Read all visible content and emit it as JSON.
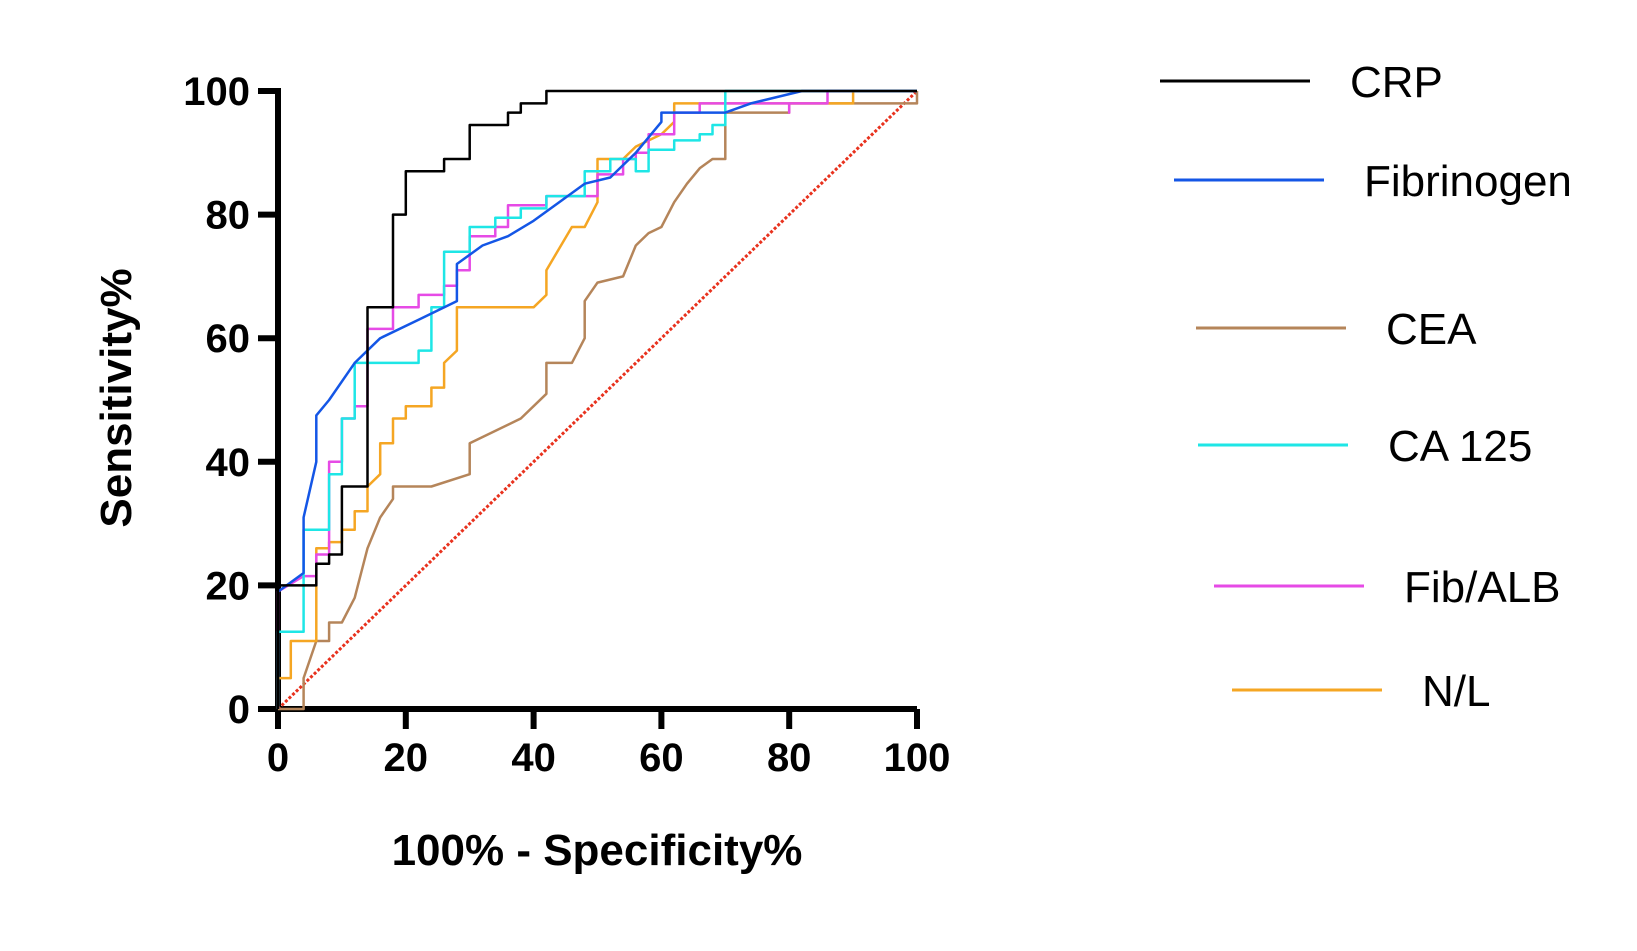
{
  "chart_data": {
    "type": "line",
    "xlabel": "100% - Specificity%",
    "ylabel": "Sensitivity%",
    "xlim": [
      0,
      100
    ],
    "ylim": [
      0,
      100
    ],
    "x_ticks": [
      "0",
      "20",
      "40",
      "60",
      "80",
      "100"
    ],
    "y_ticks": [
      "0",
      "20",
      "40",
      "60",
      "80",
      "100"
    ],
    "grid": false,
    "legend_position": "right",
    "reference_line": {
      "x": [
        0,
        100
      ],
      "y": [
        0,
        100
      ],
      "color": "#e8321e",
      "style": "dotted"
    },
    "series": [
      {
        "name": "CRP",
        "color": "#000000",
        "points": [
          [
            0,
            0
          ],
          [
            0,
            20
          ],
          [
            6,
            20
          ],
          [
            6,
            23.5
          ],
          [
            8,
            23.5
          ],
          [
            8,
            25
          ],
          [
            10,
            25
          ],
          [
            10,
            36
          ],
          [
            12,
            36
          ],
          [
            12,
            36
          ],
          [
            14,
            36
          ],
          [
            14,
            65
          ],
          [
            18,
            65
          ],
          [
            18,
            80
          ],
          [
            20,
            80
          ],
          [
            20,
            87
          ],
          [
            26,
            87
          ],
          [
            26,
            89
          ],
          [
            30,
            89
          ],
          [
            30,
            94.5
          ],
          [
            36,
            94.5
          ],
          [
            36,
            96.5
          ],
          [
            38,
            96.5
          ],
          [
            38,
            98
          ],
          [
            42,
            98
          ],
          [
            42,
            100
          ],
          [
            100,
            100
          ]
        ]
      },
      {
        "name": "Fibrinogen",
        "color": "#1456e6",
        "points": [
          [
            0,
            19
          ],
          [
            4,
            22
          ],
          [
            4,
            31
          ],
          [
            6,
            40
          ],
          [
            6,
            47.5
          ],
          [
            8,
            50
          ],
          [
            12,
            56
          ],
          [
            16,
            60
          ],
          [
            22,
            63
          ],
          [
            28,
            66
          ],
          [
            28,
            72
          ],
          [
            32,
            75
          ],
          [
            36,
            76.5
          ],
          [
            40,
            79
          ],
          [
            44,
            82
          ],
          [
            48,
            85
          ],
          [
            52,
            86
          ],
          [
            56,
            90
          ],
          [
            60,
            95
          ],
          [
            60,
            96.5
          ],
          [
            70,
            96.5
          ],
          [
            74,
            98
          ],
          [
            82,
            100
          ],
          [
            100,
            100
          ]
        ]
      },
      {
        "name": "CEA",
        "color": "#b5855a",
        "points": [
          [
            0,
            0
          ],
          [
            4,
            0
          ],
          [
            4,
            5
          ],
          [
            6,
            11
          ],
          [
            8,
            11
          ],
          [
            8,
            14
          ],
          [
            10,
            14
          ],
          [
            12,
            18
          ],
          [
            13,
            22
          ],
          [
            14,
            26
          ],
          [
            16,
            31
          ],
          [
            18,
            34
          ],
          [
            18,
            36
          ],
          [
            24,
            36
          ],
          [
            30,
            38
          ],
          [
            30,
            43
          ],
          [
            34,
            45
          ],
          [
            38,
            47
          ],
          [
            42,
            51
          ],
          [
            42,
            56
          ],
          [
            46,
            56
          ],
          [
            48,
            60
          ],
          [
            48,
            66
          ],
          [
            50,
            69
          ],
          [
            54,
            70
          ],
          [
            56,
            75
          ],
          [
            58,
            77
          ],
          [
            60,
            78
          ],
          [
            62,
            82
          ],
          [
            64,
            85
          ],
          [
            66,
            87.5
          ],
          [
            68,
            89
          ],
          [
            70,
            89
          ],
          [
            70,
            96.5
          ],
          [
            80,
            96.5
          ],
          [
            80,
            98
          ],
          [
            100,
            98
          ],
          [
            100,
            100
          ]
        ]
      },
      {
        "name": "CA 125",
        "color": "#1ee6e6",
        "points": [
          [
            0,
            0
          ],
          [
            0,
            12.5
          ],
          [
            4,
            12.5
          ],
          [
            4,
            29
          ],
          [
            8,
            29
          ],
          [
            8,
            38
          ],
          [
            10,
            38
          ],
          [
            10,
            47
          ],
          [
            12,
            47
          ],
          [
            12,
            56
          ],
          [
            22,
            56
          ],
          [
            22,
            58
          ],
          [
            24,
            58
          ],
          [
            24,
            65
          ],
          [
            26,
            65
          ],
          [
            26,
            74
          ],
          [
            30,
            74
          ],
          [
            30,
            78
          ],
          [
            34,
            78
          ],
          [
            34,
            79.5
          ],
          [
            38,
            79.5
          ],
          [
            38,
            81
          ],
          [
            42,
            81
          ],
          [
            42,
            83
          ],
          [
            44,
            83
          ],
          [
            48,
            83
          ],
          [
            48,
            87
          ],
          [
            52,
            87
          ],
          [
            52,
            89
          ],
          [
            56,
            89
          ],
          [
            56,
            87
          ],
          [
            58,
            87
          ],
          [
            58,
            90.5
          ],
          [
            62,
            90.5
          ],
          [
            62,
            92
          ],
          [
            66,
            92
          ],
          [
            66,
            93
          ],
          [
            68,
            93
          ],
          [
            68,
            94.5
          ],
          [
            70,
            94.5
          ],
          [
            70,
            100
          ],
          [
            100,
            100
          ]
        ]
      },
      {
        "name": "Fib/ALB",
        "color": "#e64ae6",
        "points": [
          [
            0,
            0
          ],
          [
            0,
            19
          ],
          [
            4,
            21.5
          ],
          [
            6,
            21.5
          ],
          [
            6,
            25
          ],
          [
            8,
            25
          ],
          [
            8,
            40
          ],
          [
            10,
            40
          ],
          [
            10,
            47
          ],
          [
            12,
            47
          ],
          [
            12,
            49
          ],
          [
            14,
            49
          ],
          [
            14,
            61.5
          ],
          [
            18,
            61.5
          ],
          [
            18,
            65
          ],
          [
            22,
            65
          ],
          [
            22,
            67
          ],
          [
            26,
            67
          ],
          [
            26,
            68.5
          ],
          [
            28,
            68.5
          ],
          [
            28,
            71
          ],
          [
            30,
            71
          ],
          [
            30,
            76.5
          ],
          [
            34,
            76.5
          ],
          [
            34,
            78
          ],
          [
            36,
            78
          ],
          [
            36,
            81.5
          ],
          [
            42,
            81.5
          ],
          [
            42,
            83
          ],
          [
            50,
            83
          ],
          [
            50,
            86.5
          ],
          [
            52,
            86.5
          ],
          [
            54,
            86.5
          ],
          [
            54,
            89
          ],
          [
            56,
            89
          ],
          [
            56,
            90
          ],
          [
            58,
            90
          ],
          [
            58,
            93
          ],
          [
            62,
            93
          ],
          [
            62,
            96.5
          ],
          [
            66,
            96.5
          ],
          [
            66,
            98
          ],
          [
            80,
            98
          ],
          [
            80,
            96.5
          ],
          [
            80,
            98
          ],
          [
            86,
            98
          ],
          [
            86,
            100
          ],
          [
            100,
            100
          ]
        ]
      },
      {
        "name": "N/L",
        "color": "#f5a623",
        "points": [
          [
            0,
            0
          ],
          [
            0,
            5
          ],
          [
            2,
            5
          ],
          [
            2,
            11
          ],
          [
            4,
            11
          ],
          [
            6,
            11
          ],
          [
            6,
            26
          ],
          [
            8,
            26
          ],
          [
            8,
            27
          ],
          [
            10,
            27
          ],
          [
            10,
            29
          ],
          [
            12,
            29
          ],
          [
            12,
            32
          ],
          [
            14,
            32
          ],
          [
            14,
            36
          ],
          [
            16,
            38
          ],
          [
            16,
            43
          ],
          [
            18,
            43
          ],
          [
            18,
            47
          ],
          [
            20,
            47
          ],
          [
            20,
            49
          ],
          [
            24,
            49
          ],
          [
            24,
            52
          ],
          [
            26,
            52
          ],
          [
            26,
            56
          ],
          [
            28,
            58
          ],
          [
            28,
            65
          ],
          [
            40,
            65
          ],
          [
            42,
            67
          ],
          [
            42,
            71
          ],
          [
            46,
            78
          ],
          [
            48,
            78
          ],
          [
            50,
            82
          ],
          [
            50,
            89
          ],
          [
            54,
            89
          ],
          [
            56,
            91
          ],
          [
            60,
            93
          ],
          [
            62,
            95
          ],
          [
            62,
            98
          ],
          [
            90,
            98
          ],
          [
            90,
            100
          ],
          [
            100,
            100
          ]
        ]
      }
    ]
  }
}
